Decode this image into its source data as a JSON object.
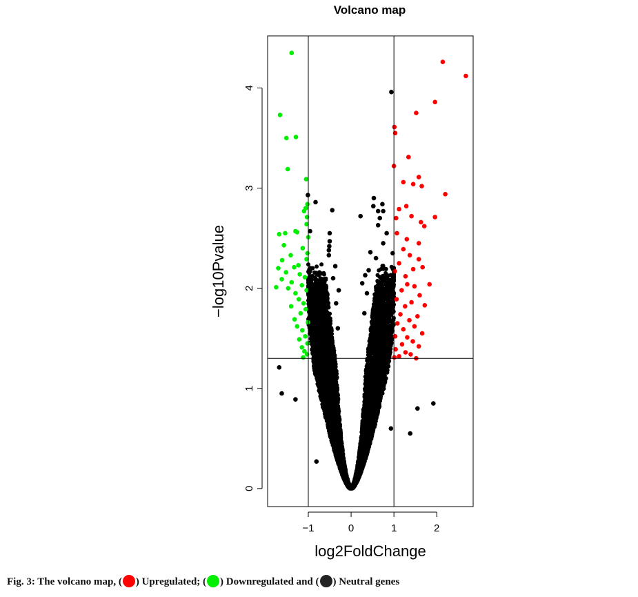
{
  "chart_data": {
    "type": "scatter",
    "title": "Volcano map",
    "xlabel": "log2FoldChange",
    "ylabel": "−log10Pvalue",
    "xlim": [
      -1.95,
      2.85
    ],
    "ylim": [
      -0.18,
      4.52
    ],
    "xticks": [
      -1,
      0,
      1,
      2
    ],
    "yticks": [
      0,
      1,
      2,
      3,
      4
    ],
    "xtick_labels": [
      "−1",
      "0",
      "1",
      "2"
    ],
    "ytick_labels": [
      "0",
      "1",
      "2",
      "3",
      "4"
    ],
    "fold_change_threshold": 1,
    "pvalue_threshold": 1.3,
    "grid": false,
    "legend": "caption",
    "series": [
      {
        "name": "Upregulated",
        "color": "#ff0000",
        "points": [
          [
            2.14,
            4.26
          ],
          [
            2.68,
            4.12
          ],
          [
            1.96,
            3.86
          ],
          [
            1.52,
            3.75
          ],
          [
            1.01,
            3.61
          ],
          [
            1.03,
            3.55
          ],
          [
            1.34,
            3.31
          ],
          [
            1.0,
            3.22
          ],
          [
            1.22,
            3.06
          ],
          [
            1.45,
            3.04
          ],
          [
            1.58,
            3.11
          ],
          [
            1.65,
            3.02
          ],
          [
            2.2,
            2.94
          ],
          [
            1.29,
            2.82
          ],
          [
            1.12,
            2.79
          ],
          [
            1.41,
            2.72
          ],
          [
            1.05,
            2.7
          ],
          [
            1.63,
            2.66
          ],
          [
            1.96,
            2.71
          ],
          [
            1.71,
            2.62
          ],
          [
            1.07,
            2.55
          ],
          [
            1.3,
            2.49
          ],
          [
            1.58,
            2.45
          ],
          [
            1.22,
            2.39
          ],
          [
            1.37,
            2.33
          ],
          [
            1.58,
            2.29
          ],
          [
            1.12,
            2.25
          ],
          [
            1.67,
            2.21
          ],
          [
            1.45,
            2.19
          ],
          [
            1.02,
            2.17
          ],
          [
            1.27,
            2.12
          ],
          [
            1.83,
            2.04
          ],
          [
            1.31,
            2.04
          ],
          [
            1.48,
            2.02
          ],
          [
            1.18,
            1.98
          ],
          [
            1.6,
            1.93
          ],
          [
            1.06,
            1.89
          ],
          [
            1.41,
            1.86
          ],
          [
            1.72,
            1.83
          ],
          [
            1.26,
            1.82
          ],
          [
            1.15,
            1.74
          ],
          [
            1.55,
            1.72
          ],
          [
            1.36,
            1.68
          ],
          [
            1.08,
            1.65
          ],
          [
            1.48,
            1.62
          ],
          [
            1.22,
            1.59
          ],
          [
            1.66,
            1.55
          ],
          [
            1.03,
            1.52
          ],
          [
            1.31,
            1.51
          ],
          [
            1.44,
            1.47
          ],
          [
            1.19,
            1.44
          ],
          [
            1.58,
            1.42
          ],
          [
            1.04,
            1.39
          ],
          [
            1.27,
            1.36
          ],
          [
            1.39,
            1.34
          ],
          [
            1.12,
            1.32
          ],
          [
            1.01,
            1.31
          ],
          [
            1.52,
            1.3
          ]
        ]
      },
      {
        "name": "Downregulated",
        "color": "#00ee00",
        "points": [
          [
            -1.39,
            4.35
          ],
          [
            -1.66,
            3.73
          ],
          [
            -1.51,
            3.5
          ],
          [
            -1.29,
            3.51
          ],
          [
            -1.48,
            3.19
          ],
          [
            -1.05,
            3.09
          ],
          [
            -1.02,
            2.84
          ],
          [
            -1.06,
            2.8
          ],
          [
            -1.1,
            2.77
          ],
          [
            -1.03,
            2.71
          ],
          [
            -1.04,
            2.64
          ],
          [
            -1.3,
            2.57
          ],
          [
            -1.54,
            2.55
          ],
          [
            -1.68,
            2.54
          ],
          [
            -1.26,
            2.56
          ],
          [
            -1.0,
            2.51
          ],
          [
            -1.57,
            2.43
          ],
          [
            -1.13,
            2.4
          ],
          [
            -1.02,
            2.35
          ],
          [
            -1.41,
            2.33
          ],
          [
            -1.61,
            2.28
          ],
          [
            -1.04,
            2.29
          ],
          [
            -1.23,
            2.23
          ],
          [
            -1.33,
            2.21
          ],
          [
            -1.7,
            2.2
          ],
          [
            -1.52,
            2.16
          ],
          [
            -1.2,
            2.14
          ],
          [
            -1.08,
            2.11
          ],
          [
            -1.62,
            2.09
          ],
          [
            -1.39,
            2.06
          ],
          [
            -1.15,
            2.03
          ],
          [
            -1.75,
            2.01
          ],
          [
            -1.47,
            2.0
          ],
          [
            -1.04,
            1.98
          ],
          [
            -1.3,
            1.95
          ],
          [
            -1.22,
            1.89
          ],
          [
            -1.11,
            1.85
          ],
          [
            -1.4,
            1.82
          ],
          [
            -1.06,
            1.79
          ],
          [
            -1.18,
            1.75
          ],
          [
            -1.32,
            1.69
          ],
          [
            -1.01,
            1.66
          ],
          [
            -1.26,
            1.62
          ],
          [
            -1.14,
            1.58
          ],
          [
            -1.07,
            1.52
          ],
          [
            -1.21,
            1.49
          ],
          [
            -1.02,
            1.45
          ],
          [
            -1.15,
            1.41
          ],
          [
            -1.09,
            1.37
          ],
          [
            -1.03,
            1.34
          ],
          [
            -1.12,
            1.31
          ]
        ]
      },
      {
        "name": "Neutral",
        "color": "#000000",
        "points": [
          [
            0.94,
            3.96
          ],
          [
            -1.01,
            2.93
          ],
          [
            -0.83,
            2.86
          ],
          [
            0.53,
            2.9
          ],
          [
            0.73,
            2.84
          ],
          [
            0.52,
            2.82
          ],
          [
            0.75,
            2.77
          ],
          [
            -0.44,
            2.78
          ],
          [
            0.63,
            2.77
          ],
          [
            0.22,
            2.72
          ],
          [
            0.67,
            2.7
          ],
          [
            -0.96,
            2.57
          ],
          [
            0.63,
            2.63
          ],
          [
            -0.5,
            2.55
          ],
          [
            0.83,
            2.55
          ],
          [
            -0.5,
            2.47
          ],
          [
            0.75,
            2.45
          ],
          [
            -0.51,
            2.42
          ],
          [
            -0.52,
            2.38
          ],
          [
            0.45,
            2.36
          ],
          [
            -0.52,
            2.33
          ],
          [
            0.58,
            2.3
          ],
          [
            -0.37,
            2.22
          ],
          [
            0.41,
            2.18
          ],
          [
            0.33,
            2.13
          ],
          [
            -0.42,
            2.1
          ],
          [
            0.26,
            2.05
          ],
          [
            -0.29,
            1.98
          ],
          [
            0.37,
            1.95
          ],
          [
            -0.35,
            1.85
          ],
          [
            0.31,
            1.75
          ],
          [
            -0.31,
            1.6
          ],
          [
            -0.95,
            2.2
          ],
          [
            -0.98,
            1.9
          ],
          [
            0.97,
            2.35
          ],
          [
            0.9,
            1.98
          ],
          [
            -1.68,
            1.21
          ],
          [
            -1.62,
            0.95
          ],
          [
            -1.3,
            0.89
          ],
          [
            1.55,
            0.8
          ],
          [
            1.92,
            0.85
          ],
          [
            1.38,
            0.55
          ],
          [
            -0.81,
            0.27
          ],
          [
            0.93,
            0.6
          ]
        ]
      }
    ]
  },
  "caption": {
    "prefix": "Fig. 3: The volcano map, (",
    "up": ") Upregulated; (",
    "down": ") Downregulated and (",
    "neutral": ") Neutral genes"
  }
}
